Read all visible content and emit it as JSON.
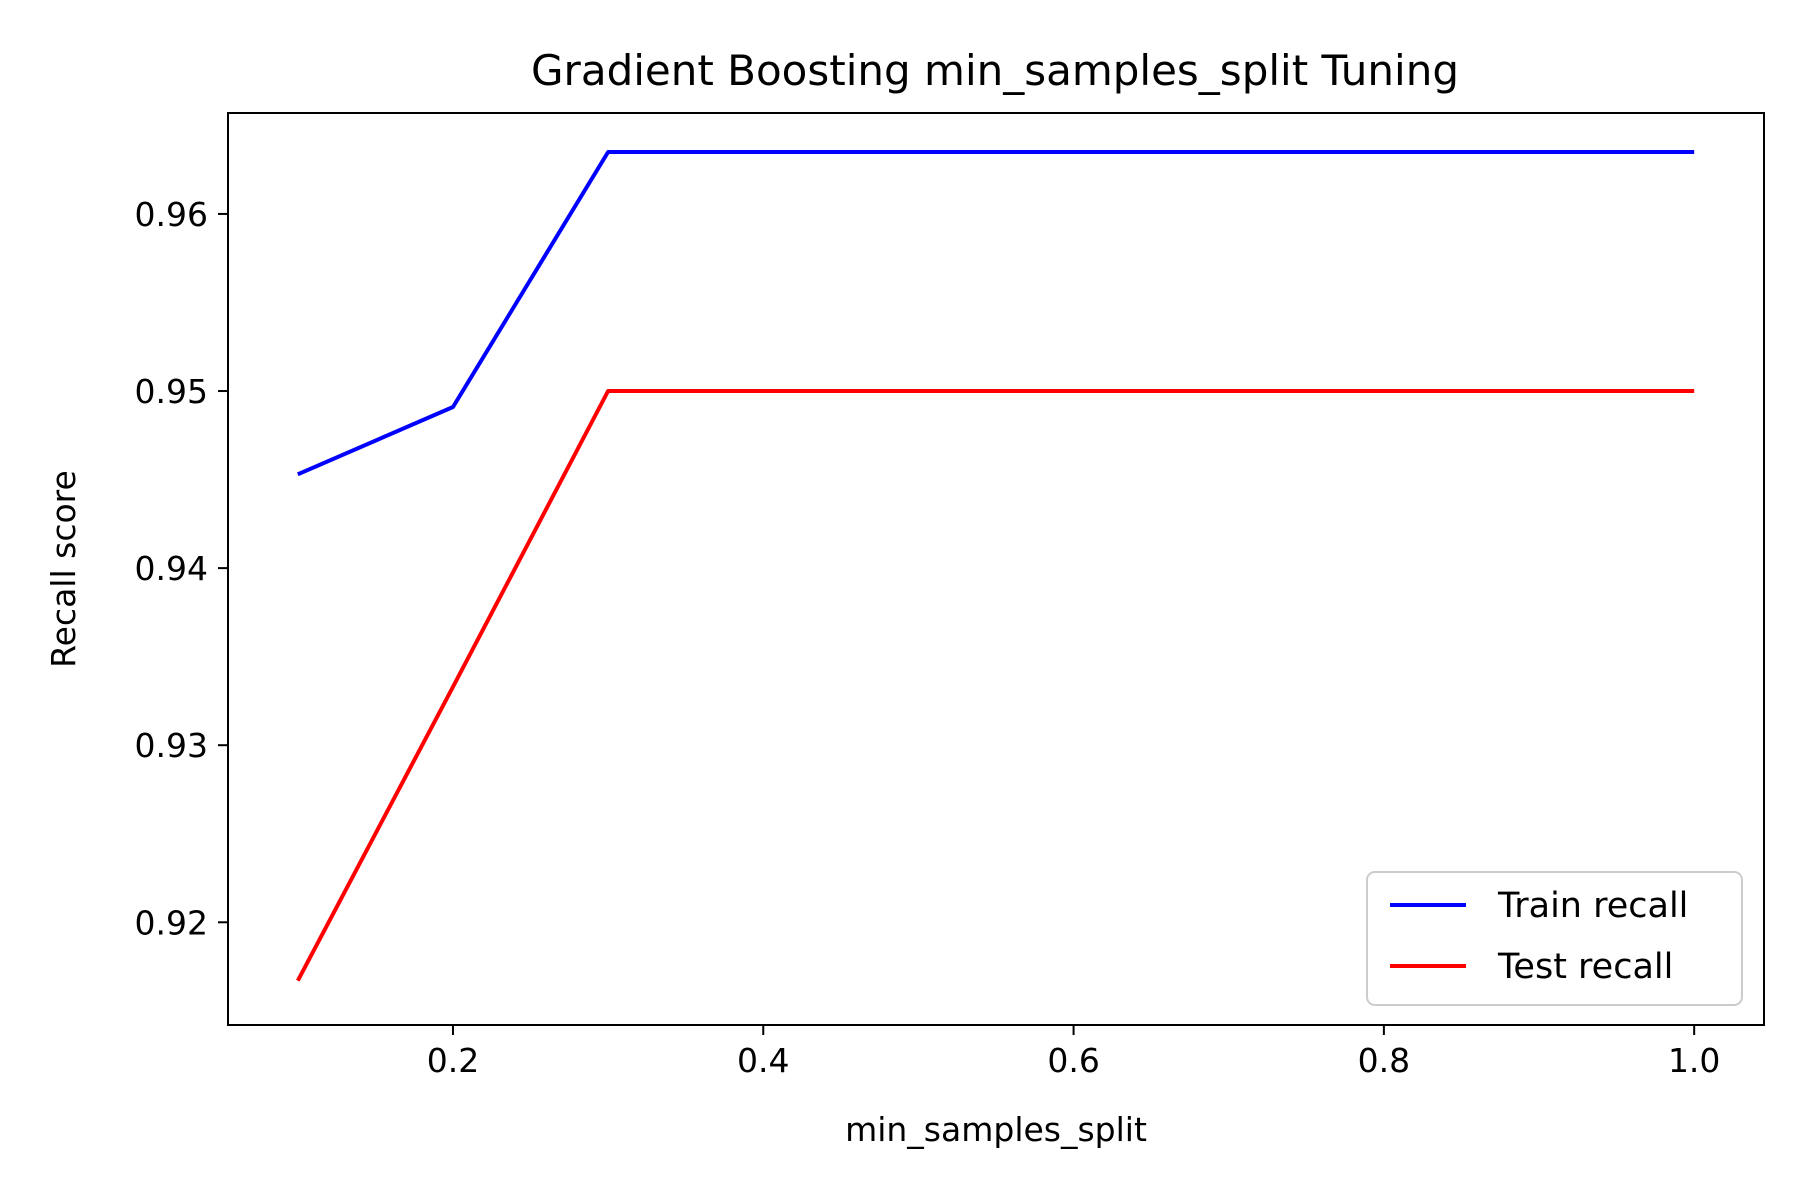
{
  "chart_data": {
    "type": "line",
    "title": "Gradient Boosting min_samples_split Tuning",
    "xlabel": "min_samples_split",
    "ylabel": "Recall score",
    "xlim": [
      0.055,
      1.045
    ],
    "ylim": [
      0.9142,
      0.9657
    ],
    "x_ticks": [
      0.2,
      0.4,
      0.6,
      0.8,
      1.0
    ],
    "x_tick_labels": [
      "0.2",
      "0.4",
      "0.6",
      "0.8",
      "1.0"
    ],
    "y_ticks": [
      0.92,
      0.93,
      0.94,
      0.95,
      0.96
    ],
    "y_tick_labels": [
      "0.92",
      "0.93",
      "0.94",
      "0.95",
      "0.96"
    ],
    "grid": false,
    "legend_position": "lower-right",
    "x": [
      0.1,
      0.2,
      0.3,
      0.4,
      0.5,
      0.6,
      0.7,
      0.8,
      0.9,
      1.0
    ],
    "series": [
      {
        "name": "Train recall",
        "color": "#0000ff",
        "values": [
          0.9453,
          0.9491,
          0.9635,
          0.9635,
          0.9635,
          0.9635,
          0.9635,
          0.9635,
          0.9635,
          0.9635
        ]
      },
      {
        "name": "Test recall",
        "color": "#ff0000",
        "values": [
          0.9167,
          0.9333,
          0.95,
          0.95,
          0.95,
          0.95,
          0.95,
          0.95,
          0.95,
          0.95
        ]
      }
    ]
  }
}
